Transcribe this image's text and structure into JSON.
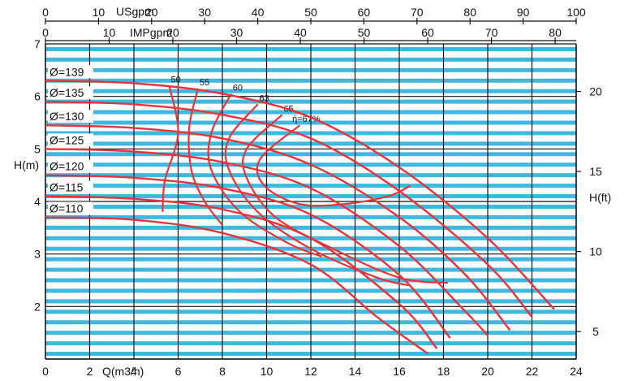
{
  "chart_data": {
    "type": "line",
    "title": "",
    "colors": {
      "curve": "#e8333a",
      "hband": "#3fb8df",
      "grid": "#111111"
    },
    "x_axis": {
      "label": "Q(m3/h)",
      "range": [
        0,
        24
      ],
      "ticks": [
        "0",
        "2",
        "4",
        "6",
        "8",
        "10",
        "12",
        "14",
        "16",
        "18",
        "20",
        "22",
        "24"
      ]
    },
    "x_top_usgpm": {
      "label": "USgpm",
      "range": [
        0,
        100
      ],
      "ticks": [
        "0",
        "10",
        "20",
        "30",
        "40",
        "50",
        "60",
        "70",
        "80",
        "90",
        "100"
      ]
    },
    "x_top_impgpm": {
      "label": "IMPgpm",
      "range": [
        0,
        83.3
      ],
      "ticks": [
        "0",
        "10",
        "20",
        "30",
        "40",
        "50",
        "60",
        "70",
        "80"
      ]
    },
    "y_left": {
      "label": "H(m)",
      "range": [
        1,
        7
      ],
      "ticks": [
        "2",
        "3",
        "4",
        "5",
        "6",
        "7"
      ]
    },
    "y_right": {
      "label": "H(ft)",
      "range": [
        3.28,
        22.97
      ],
      "ticks": [
        "5",
        "10",
        "15",
        "20"
      ]
    },
    "series": [
      {
        "name": "Ø=139",
        "x": [
          0,
          4,
          8,
          12,
          16,
          20,
          23
        ],
        "y": [
          6.3,
          6.25,
          6.05,
          5.6,
          4.65,
          3.3,
          1.95
        ]
      },
      {
        "name": "Ø=135",
        "x": [
          0,
          4,
          8,
          12,
          16,
          20,
          22
        ],
        "y": [
          5.9,
          5.85,
          5.65,
          5.2,
          4.2,
          2.8,
          1.8
        ]
      },
      {
        "name": "Ø=130",
        "x": [
          0,
          4,
          8,
          12,
          16,
          19,
          21
        ],
        "y": [
          5.45,
          5.4,
          5.2,
          4.7,
          3.7,
          2.6,
          1.55
        ]
      },
      {
        "name": "Ø=125",
        "x": [
          0,
          4,
          8,
          12,
          16,
          19,
          20
        ],
        "y": [
          5.0,
          4.95,
          4.75,
          4.25,
          3.15,
          1.9,
          1.45
        ]
      },
      {
        "name": "Ø=120",
        "x": [
          0,
          4,
          8,
          12,
          16,
          18.3
        ],
        "y": [
          4.5,
          4.45,
          4.25,
          3.75,
          2.6,
          1.4
        ]
      },
      {
        "name": "Ø=115",
        "x": [
          0,
          4,
          8,
          12,
          16,
          17.7
        ],
        "y": [
          4.1,
          4.05,
          3.85,
          3.3,
          2.05,
          1.2
        ]
      },
      {
        "name": "Ø=110",
        "x": [
          0,
          4,
          8,
          12,
          15,
          17.3
        ],
        "y": [
          3.7,
          3.65,
          3.4,
          2.8,
          1.8,
          1.1
        ]
      }
    ],
    "efficiency_contours": [
      {
        "label": "50",
        "x": [
          5.6,
          6.0,
          5.4,
          5.3
        ],
        "y": [
          6.2,
          5.3,
          4.4,
          3.8
        ]
      },
      {
        "label": "55",
        "x": [
          6.9,
          6.5,
          6.6,
          7.2,
          8.0
        ],
        "y": [
          6.15,
          5.4,
          4.6,
          4.0,
          3.55
        ]
      },
      {
        "label": "60",
        "x": [
          8.4,
          7.5,
          7.5,
          8.8,
          11.0,
          12.5
        ],
        "y": [
          6.05,
          5.3,
          4.6,
          3.8,
          3.2,
          2.95
        ]
      },
      {
        "label": "63",
        "x": [
          9.6,
          8.3,
          8.3,
          9.6,
          12.0,
          15.0,
          16.5
        ],
        "y": [
          5.85,
          5.2,
          4.6,
          3.8,
          3.1,
          2.55,
          2.4
        ]
      },
      {
        "label": "65",
        "x": [
          10.7,
          9.1,
          9.1,
          10.4,
          13.0,
          16.0,
          18.2
        ],
        "y": [
          5.65,
          5.0,
          4.45,
          3.7,
          3.1,
          2.55,
          2.45
        ]
      },
      {
        "label": "67%",
        "x": [
          11.5,
          9.7,
          9.9,
          11.5,
          13.5,
          15.5,
          16.5
        ],
        "y": [
          5.45,
          4.8,
          4.3,
          3.95,
          3.95,
          4.1,
          4.3
        ]
      }
    ],
    "efficiency_labels": [
      "50",
      "55",
      "60",
      "63",
      "65",
      "ή=67%"
    ],
    "grid": true,
    "legend": "inline-left"
  }
}
